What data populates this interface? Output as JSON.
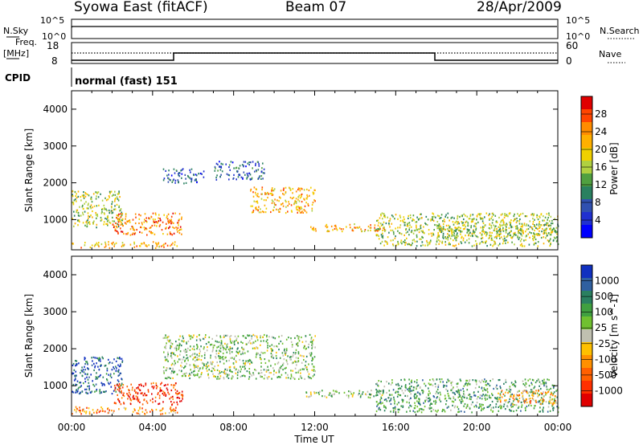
{
  "header": {
    "title": "Syowa East (fitACF)",
    "beam": "Beam 07",
    "date": "28/Apr/2009"
  },
  "nsky_panel": {
    "left_label": "N.Sky",
    "right_label": "N.Search",
    "left_ticks": [
      "10^5",
      "10^0"
    ],
    "right_ticks": [
      "10^5",
      "10^0"
    ]
  },
  "freq_panel": {
    "left_label_1": "Freq.",
    "left_label_2": "[MHz]",
    "right_label": "Nave",
    "left_ticks": [
      "18",
      "8"
    ],
    "right_ticks": [
      "60",
      "0"
    ]
  },
  "cpid": {
    "label": "CPID",
    "mode": "normal (fast) 151"
  },
  "time_axis": {
    "label": "Time UT",
    "ticks": [
      "00:00",
      "04:00",
      "08:00",
      "12:00",
      "16:00",
      "20:00",
      "00:00"
    ]
  },
  "chart_data": [
    {
      "type": "heatmap",
      "title": "Power",
      "ylabel": "Slant Range [km]",
      "yticks": [
        1000,
        2000,
        3000,
        4000
      ],
      "ylim": [
        180,
        4500
      ],
      "x_range_hours": [
        0,
        24
      ],
      "colorbar": {
        "label": "Power [dB]",
        "ticks": [
          "28",
          "24",
          "20",
          "16",
          "12",
          "8",
          "4"
        ],
        "colors": [
          "#e00000",
          "#ff4500",
          "#ff8c00",
          "#ffb000",
          "#f0d000",
          "#b0d040",
          "#50a040",
          "#2a8060",
          "#3050b0",
          "#2030d0",
          "#0000ff"
        ]
      },
      "regions": [
        {
          "t": [
            0.0,
            5.2
          ],
          "r": [
            250,
            420
          ],
          "level": 20
        },
        {
          "t": [
            0.0,
            2.5
          ],
          "r": [
            800,
            1800
          ],
          "level": 16
        },
        {
          "t": [
            2.0,
            5.5
          ],
          "r": [
            600,
            1200
          ],
          "level": 22
        },
        {
          "t": [
            4.5,
            6.5
          ],
          "r": [
            2000,
            2400
          ],
          "level": 8
        },
        {
          "t": [
            7.0,
            9.5
          ],
          "r": [
            2100,
            2600
          ],
          "level": 8
        },
        {
          "t": [
            8.8,
            12.0
          ],
          "r": [
            1200,
            1900
          ],
          "level": 18
        },
        {
          "t": [
            11.5,
            15.5
          ],
          "r": [
            700,
            900
          ],
          "level": 20
        },
        {
          "t": [
            15.0,
            24.0
          ],
          "r": [
            300,
            1200
          ],
          "level": 14
        },
        {
          "t": [
            18.0,
            24.0
          ],
          "r": [
            500,
            900
          ],
          "level": 16
        }
      ]
    },
    {
      "type": "heatmap",
      "title": "Velocity",
      "ylabel": "Slant Range [km]",
      "yticks": [
        1000,
        2000,
        3000,
        4000
      ],
      "ylim": [
        180,
        4500
      ],
      "x_range_hours": [
        0,
        24
      ],
      "colorbar": {
        "label": "Velocity [m s^-1]",
        "ticks": [
          "1000",
          "500",
          "100",
          "25",
          "-25",
          "-100",
          "-500",
          "-1000"
        ],
        "colors": [
          "#1030c0",
          "#3060a0",
          "#2a8060",
          "#40a040",
          "#70c030",
          "#c0c0b0",
          "#ffc000",
          "#ff9000",
          "#ff6000",
          "#ff3000",
          "#e00000"
        ]
      },
      "regions": [
        {
          "t": [
            0.0,
            5.2
          ],
          "r": [
            250,
            450
          ],
          "level": -100
        },
        {
          "t": [
            0.0,
            2.5
          ],
          "r": [
            800,
            1800
          ],
          "level": 500
        },
        {
          "t": [
            2.0,
            5.5
          ],
          "r": [
            500,
            1100
          ],
          "level": -500
        },
        {
          "t": [
            4.5,
            12.0
          ],
          "r": [
            1200,
            2400
          ],
          "level": 0
        },
        {
          "t": [
            11.5,
            15.5
          ],
          "r": [
            700,
            900
          ],
          "level": 0
        },
        {
          "t": [
            15.0,
            24.0
          ],
          "r": [
            300,
            1200
          ],
          "level": 100
        },
        {
          "t": [
            21.0,
            24.0
          ],
          "r": [
            500,
            900
          ],
          "level": -100
        }
      ]
    }
  ]
}
